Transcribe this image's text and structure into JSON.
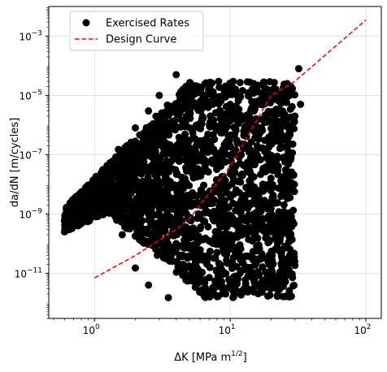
{
  "chart_data": {
    "type": "scatter",
    "xlabel_main": "ΔK [MPa m",
    "xlabel_sup": "1/2",
    "xlabel_end": "]",
    "ylabel": "da/dN [m/cycles]",
    "xscale": "log",
    "yscale": "log",
    "xlim": [
      0.46,
      130
    ],
    "ylim": [
      3e-13,
      0.01
    ],
    "grid": true,
    "legend_position": "top-left",
    "x_ticks": [
      {
        "base": "10",
        "exp": "0",
        "value": 1
      },
      {
        "base": "10",
        "exp": "1",
        "value": 10
      },
      {
        "base": "10",
        "exp": "2",
        "value": 100
      }
    ],
    "y_ticks": [
      {
        "base": "10",
        "exp": "−11",
        "value": 1e-11
      },
      {
        "base": "10",
        "exp": "−9",
        "value": 1e-09
      },
      {
        "base": "10",
        "exp": "−7",
        "value": 1e-07
      },
      {
        "base": "10",
        "exp": "−5",
        "value": 1e-05
      },
      {
        "base": "10",
        "exp": "−3",
        "value": 0.001
      }
    ],
    "series": [
      {
        "name": "Exercised Rates",
        "kind": "scatter",
        "color": "#000000",
        "points": [
          {
            "x": 0.6,
            "y": 2.5e-10
          },
          {
            "x": 0.65,
            "y": 3e-10
          },
          {
            "x": 0.75,
            "y": 6e-10
          },
          {
            "x": 0.9,
            "y": 1.5e-09
          },
          {
            "x": 1.0,
            "y": 3e-09
          },
          {
            "x": 1.3,
            "y": 6e-09
          },
          {
            "x": 1.0,
            "y": 1e-08
          },
          {
            "x": 1.2,
            "y": 3e-08
          },
          {
            "x": 1.5,
            "y": 1.5e-07
          },
          {
            "x": 2.0,
            "y": 8e-07
          },
          {
            "x": 2.5,
            "y": 3e-06
          },
          {
            "x": 3.0,
            "y": 1e-05
          },
          {
            "x": 4.0,
            "y": 5e-05
          },
          {
            "x": 1.6,
            "y": 2e-10
          },
          {
            "x": 2.0,
            "y": 1.5e-11
          },
          {
            "x": 2.5,
            "y": 4e-12
          },
          {
            "x": 3.5,
            "y": 1.5e-12
          },
          {
            "x": 4.5,
            "y": 2e-11
          },
          {
            "x": 6.0,
            "y": 1e-11
          },
          {
            "x": 8.0,
            "y": 5e-11
          },
          {
            "x": 10.0,
            "y": 2e-10
          },
          {
            "x": 12.0,
            "y": 1e-09
          },
          {
            "x": 14.0,
            "y": 2e-09
          },
          {
            "x": 16.0,
            "y": 3e-09
          },
          {
            "x": 20.0,
            "y": 1.5e-09
          },
          {
            "x": 22.0,
            "y": 5e-07
          },
          {
            "x": 25.0,
            "y": 1.5e-06
          },
          {
            "x": 30.0,
            "y": 2e-06
          },
          {
            "x": 33.0,
            "y": 5e-06
          },
          {
            "x": 32.0,
            "y": 8e-05
          },
          {
            "x": 28.0,
            "y": 2e-05
          },
          {
            "x": 20.0,
            "y": 1e-05
          },
          {
            "x": 15.0,
            "y": 3e-06
          },
          {
            "x": 5.0,
            "y": 2e-06
          },
          {
            "x": 6.0,
            "y": 1e-07
          },
          {
            "x": 8.0,
            "y": 1e-08
          },
          {
            "x": 3.0,
            "y": 1e-09
          },
          {
            "x": 4.0,
            "y": 1e-10
          },
          {
            "x": 1.7,
            "y": 5e-10
          },
          {
            "x": 7.0,
            "y": 5e-06
          },
          {
            "x": 10.0,
            "y": 5e-06
          },
          {
            "x": 12.0,
            "y": 2e-08
          }
        ]
      },
      {
        "name": "Design Curve",
        "kind": "line",
        "color": "#ff0000",
        "dash": true,
        "points": [
          {
            "x": 1.0,
            "y": 7e-12
          },
          {
            "x": 2.0,
            "y": 4e-11
          },
          {
            "x": 4.0,
            "y": 3e-10
          },
          {
            "x": 5.0,
            "y": 7e-10
          },
          {
            "x": 10.0,
            "y": 4e-08
          },
          {
            "x": 15.0,
            "y": 1e-06
          },
          {
            "x": 20.0,
            "y": 1e-05
          },
          {
            "x": 30.0,
            "y": 3e-05
          },
          {
            "x": 100.0,
            "y": 0.0035
          }
        ]
      }
    ]
  }
}
